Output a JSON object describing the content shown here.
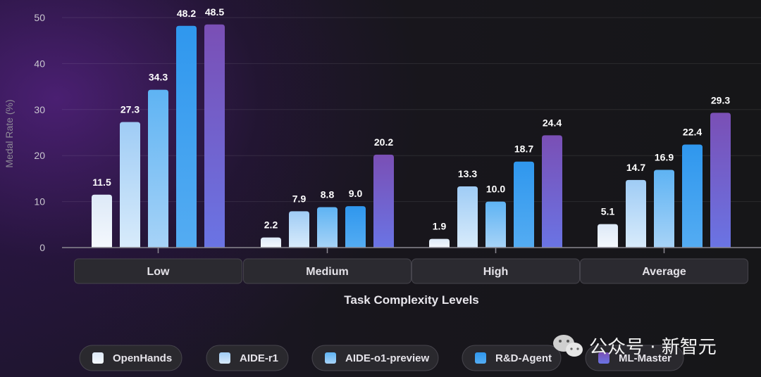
{
  "chart_data": {
    "type": "bar",
    "categories": [
      "Low",
      "Medium",
      "High",
      "Average"
    ],
    "series": [
      {
        "name": "OpenHands",
        "values": [
          11.5,
          2.2,
          1.9,
          5.1
        ],
        "color_top": "#dde9f7",
        "color_bottom": "#f4f8fd"
      },
      {
        "name": "AIDE-r1",
        "values": [
          27.3,
          7.9,
          13.3,
          14.7
        ],
        "color_top": "#9fccf5",
        "color_bottom": "#d8ebfb"
      },
      {
        "name": "AIDE-o1-preview",
        "values": [
          34.3,
          8.8,
          10.0,
          16.9
        ],
        "color_top": "#5eb3f3",
        "color_bottom": "#a7d3f7"
      },
      {
        "name": "R&D-Agent",
        "values": [
          48.2,
          9.0,
          18.7,
          22.4
        ],
        "color_top": "#2f97ee",
        "color_bottom": "#54acf2"
      },
      {
        "name": "ML-Master",
        "values": [
          48.5,
          20.2,
          24.4,
          29.3
        ],
        "color_top": "#7a4fb5",
        "color_bottom": "#6a74e4"
      }
    ],
    "xlabel": "Task Complexity Levels",
    "ylabel": "Medal Rate (%)",
    "ylim": [
      0,
      50
    ],
    "yticks": [
      0,
      10,
      20,
      30,
      40,
      50
    ],
    "grid": true,
    "legend_position": "bottom"
  },
  "watermark": {
    "text": "公众号 · 新智元",
    "icon": "wechat-icon"
  }
}
